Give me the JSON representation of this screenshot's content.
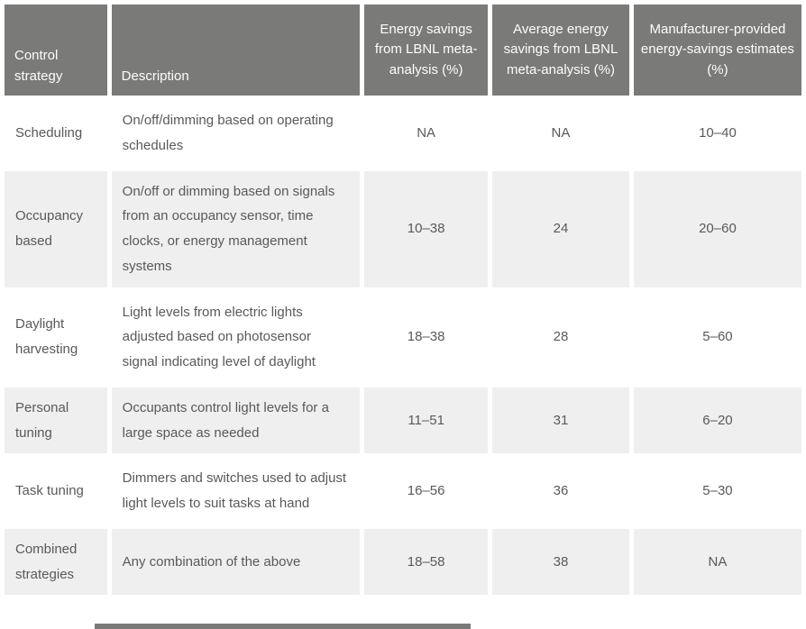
{
  "colors": {
    "header_background": "#7a7a78",
    "header_text": "#fdfdfd",
    "row_alternate_background": "#efefef",
    "row_background": "#ffffff",
    "body_text": "#595959"
  },
  "table": {
    "columns": [
      {
        "label": "Control strategy"
      },
      {
        "label": "Description"
      },
      {
        "label": "Energy savings from LBNL meta-analysis (%)"
      },
      {
        "label": "Average energy savings from LBNL meta-analysis (%)"
      },
      {
        "label": "Manufacturer-provided energy-savings estimates (%)"
      }
    ],
    "rows": [
      {
        "strategy": "Scheduling",
        "description": "On/off/dimming based on operating schedules",
        "lbnl_range": "NA",
        "lbnl_avg": "NA",
        "mfr_range": "10–40"
      },
      {
        "strategy": "Occupancy based",
        "description": "On/off or dimming based on signals from an occupancy sensor, time clocks, or energy management systems",
        "lbnl_range": "10–38",
        "lbnl_avg": "24",
        "mfr_range": "20–60"
      },
      {
        "strategy": "Daylight harvesting",
        "description": "Light levels from electric lights adjusted based on photosensor signal indicating level of daylight",
        "lbnl_range": "18–38",
        "lbnl_avg": "28",
        "mfr_range": "5–60"
      },
      {
        "strategy": "Personal tuning",
        "description": "Occupants control light levels for a large space as needed",
        "lbnl_range": "11–51",
        "lbnl_avg": "31",
        "mfr_range": "6–20"
      },
      {
        "strategy": "Task tuning",
        "description": "Dimmers and switches used to adjust light levels to suit tasks at hand",
        "lbnl_range": "16–56",
        "lbnl_avg": "36",
        "mfr_range": "5–30"
      },
      {
        "strategy": "Combined strategies",
        "description": "Any combination of the above",
        "lbnl_range": "18–58",
        "lbnl_avg": "38",
        "mfr_range": "NA"
      }
    ]
  }
}
